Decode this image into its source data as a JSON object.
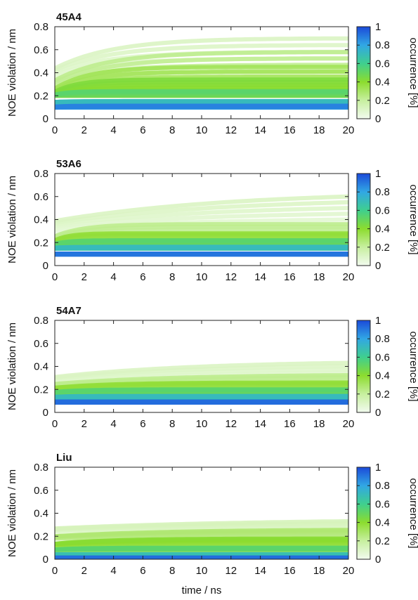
{
  "chart_data": {
    "type": "heatmap",
    "xlabel": "time / ns",
    "ylabel": "NOE violation / nm",
    "colorbar_label": "occurrence [%]",
    "xlim": [
      0,
      20
    ],
    "ylim": [
      0,
      0.8
    ],
    "x_ticks": [
      "0",
      "2",
      "4",
      "6",
      "8",
      "10",
      "12",
      "14",
      "16",
      "18",
      "20"
    ],
    "y_ticks": [
      "0",
      "0.2",
      "0.4",
      "0.6",
      "0.8"
    ],
    "colorbar_ticks": [
      "0",
      "0.2",
      "0.4",
      "0.6",
      "0.8",
      "1"
    ],
    "colorscale": [
      "#f2fbef",
      "#c7ef9f",
      "#8cdc2e",
      "#3fcf8e",
      "#31a7e4",
      "#1b4ad9"
    ],
    "grid": false,
    "panels": [
      {
        "name": "45A4",
        "bands": [
          {
            "y_start": 0.35,
            "y_end": 0.7,
            "rise": 0.2,
            "occurrence": 0.08
          },
          {
            "y_start": 0.25,
            "y_end": 0.58,
            "rise": 0.18,
            "occurrence": 0.2
          },
          {
            "y_start": 0.2,
            "y_end": 0.45,
            "rise": 0.12,
            "occurrence": 0.3
          },
          {
            "y_start": 0.2,
            "y_end": 0.34,
            "rise": 0.08,
            "occurrence": 0.4
          },
          {
            "y_start": 0.2,
            "y_end": 0.24,
            "rise": 0.05,
            "occurrence": 0.5
          },
          {
            "y_start": 0.14,
            "y_end": 0.15,
            "rise": 0.03,
            "occurrence": 0.68
          },
          {
            "y_start": 0.1,
            "y_end": 0.11,
            "rise": 0.02,
            "occurrence": 0.85
          }
        ]
      },
      {
        "name": "53A6",
        "bands": [
          {
            "y_start": 0.3,
            "y_end": 0.65,
            "rise": 0.6,
            "occurrence": 0.08
          },
          {
            "y_start": 0.22,
            "y_end": 0.36,
            "rise": 0.1,
            "occurrence": 0.2
          },
          {
            "y_start": 0.2,
            "y_end": 0.28,
            "rise": 0.05,
            "occurrence": 0.35
          },
          {
            "y_start": 0.18,
            "y_end": 0.22,
            "rise": 0.03,
            "occurrence": 0.5
          },
          {
            "y_start": 0.15,
            "y_end": 0.16,
            "rise": 0.02,
            "occurrence": 0.68
          },
          {
            "y_start": 0.1,
            "y_end": 0.1,
            "rise": 0.01,
            "occurrence": 0.88
          }
        ]
      },
      {
        "name": "54A7",
        "bands": [
          {
            "y_start": 0.26,
            "y_end": 0.45,
            "rise": 0.5,
            "occurrence": 0.08
          },
          {
            "y_start": 0.22,
            "y_end": 0.33,
            "rise": 0.4,
            "occurrence": 0.2
          },
          {
            "y_start": 0.2,
            "y_end": 0.26,
            "rise": 0.2,
            "occurrence": 0.35
          },
          {
            "y_start": 0.17,
            "y_end": 0.2,
            "rise": 0.1,
            "occurrence": 0.5
          },
          {
            "y_start": 0.13,
            "y_end": 0.14,
            "rise": 0.05,
            "occurrence": 0.68
          },
          {
            "y_start": 0.09,
            "y_end": 0.09,
            "rise": 0.02,
            "occurrence": 0.9
          }
        ]
      },
      {
        "name": "Liu",
        "bands": [
          {
            "y_start": 0.24,
            "y_end": 0.35,
            "rise": 0.7,
            "occurrence": 0.1
          },
          {
            "y_start": 0.18,
            "y_end": 0.26,
            "rise": 0.4,
            "occurrence": 0.25
          },
          {
            "y_start": 0.12,
            "y_end": 0.18,
            "rise": 0.2,
            "occurrence": 0.38
          },
          {
            "y_start": 0.08,
            "y_end": 0.1,
            "rise": 0.1,
            "occurrence": 0.5
          },
          {
            "y_start": 0.04,
            "y_end": 0.04,
            "rise": 0.05,
            "occurrence": 0.65
          },
          {
            "y_start": 0.01,
            "y_end": 0.01,
            "rise": 0.02,
            "occurrence": 0.9
          }
        ]
      }
    ]
  }
}
